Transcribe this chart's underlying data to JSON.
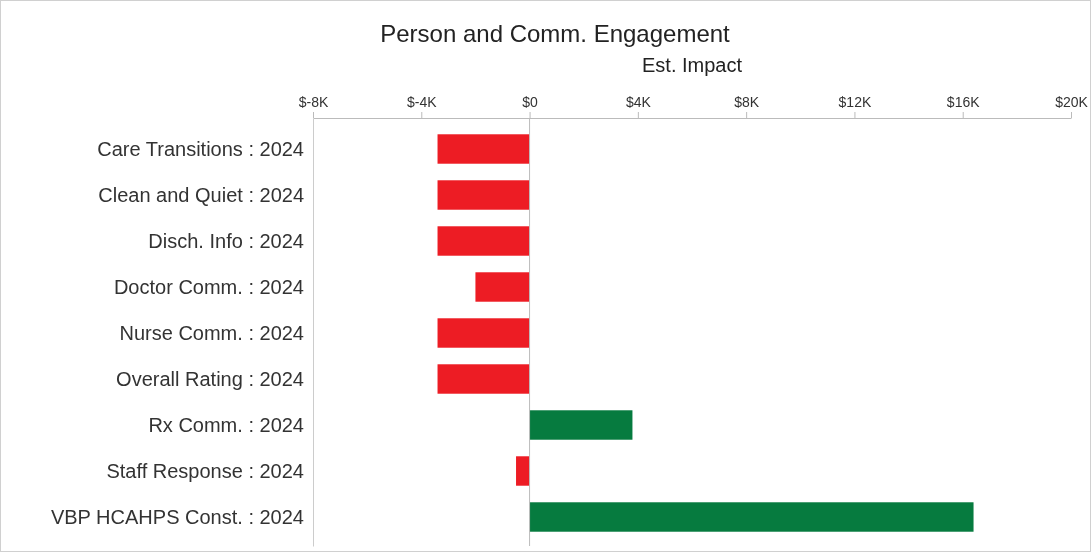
{
  "chart_data": {
    "type": "bar",
    "orientation": "horizontal",
    "title": "Person and Comm. Engagement",
    "xlabel": "Est. Impact",
    "categories": [
      "Care Transitions : 2024",
      "Clean and Quiet : 2024",
      "Disch. Info : 2024",
      "Doctor Comm. : 2024",
      "Nurse Comm. : 2024",
      "Overall Rating : 2024",
      "Rx Comm. : 2024",
      "Staff Response : 2024",
      "VBP HCAHPS Const. : 2024"
    ],
    "values": [
      -3.4,
      -3.4,
      -3.4,
      -2.0,
      -3.4,
      -3.4,
      3.8,
      -0.5,
      16.4
    ],
    "colors": [
      "#ed1c24",
      "#ed1c24",
      "#ed1c24",
      "#ed1c24",
      "#ed1c24",
      "#ed1c24",
      "#067b3f",
      "#ed1c24",
      "#067b3f"
    ],
    "xlim": [
      -8,
      20
    ],
    "xticks": [
      {
        "value": -8,
        "label": "$-8K"
      },
      {
        "value": -4,
        "label": "$-4K"
      },
      {
        "value": 0,
        "label": "$0"
      },
      {
        "value": 4,
        "label": "$4K"
      },
      {
        "value": 8,
        "label": "$8K"
      },
      {
        "value": 12,
        "label": "$12K"
      },
      {
        "value": 16,
        "label": "$16K"
      },
      {
        "value": 20,
        "label": "$20K"
      }
    ],
    "ref_lines": [
      {
        "axis": "x",
        "value": 0,
        "color": "#bbbbbb"
      }
    ]
  }
}
